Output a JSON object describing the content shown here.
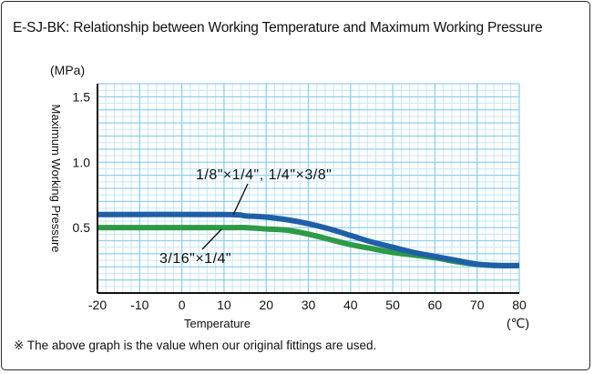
{
  "header": {
    "title": "E-SJ-BK: Relationship between Working Temperature and Maximum Working Pressure"
  },
  "footnote": "※ The above graph is the value when our original fittings are used.",
  "colors": {
    "background": "#ffffff",
    "grid_major": "#8fd0ef",
    "grid_minor": "#c6e7f7",
    "series_blue": "#1f5fa7",
    "series_green": "#2e9a45",
    "axis": "#111111"
  },
  "chart_data": {
    "type": "line",
    "title": "E-SJ-BK: Relationship between Working Temperature and Maximum Working Pressure",
    "xlabel": "Temperature",
    "ylabel": "Maximum Working Pressure",
    "x_unit": "(℃)",
    "y_unit": "(MPa)",
    "xlim": [
      -20,
      80
    ],
    "ylim": [
      0,
      1.6
    ],
    "x_ticks": [
      -20,
      -10,
      0,
      10,
      20,
      30,
      40,
      50,
      60,
      70,
      80
    ],
    "x_tick_labels": [
      "-20",
      "-10",
      "0",
      "10",
      "20",
      "30",
      "40",
      "50",
      "60",
      "70",
      "80"
    ],
    "y_ticks": [
      0.5,
      1.0,
      1.5
    ],
    "y_tick_labels": [
      "0.5",
      "1.0",
      "1.5"
    ],
    "grid": true,
    "series": [
      {
        "name": "1/8\"×1/4\", 1/4\"×3/8\"",
        "color": "#1f5fa7",
        "x": [
          -20,
          10,
          15,
          20,
          25,
          30,
          35,
          40,
          45,
          50,
          55,
          60,
          65,
          70,
          75,
          80
        ],
        "y": [
          0.6,
          0.6,
          0.59,
          0.58,
          0.56,
          0.53,
          0.49,
          0.44,
          0.39,
          0.35,
          0.31,
          0.28,
          0.25,
          0.22,
          0.21,
          0.21
        ]
      },
      {
        "name": "3/16\"×1/4\"",
        "color": "#2e9a45",
        "x": [
          -20,
          10,
          15,
          20,
          25,
          30,
          35,
          40,
          45,
          50,
          55,
          60,
          65,
          70,
          75,
          80
        ],
        "y": [
          0.5,
          0.5,
          0.5,
          0.49,
          0.48,
          0.45,
          0.41,
          0.37,
          0.34,
          0.31,
          0.29,
          0.27,
          0.24,
          0.22,
          0.21,
          0.21
        ]
      }
    ]
  }
}
